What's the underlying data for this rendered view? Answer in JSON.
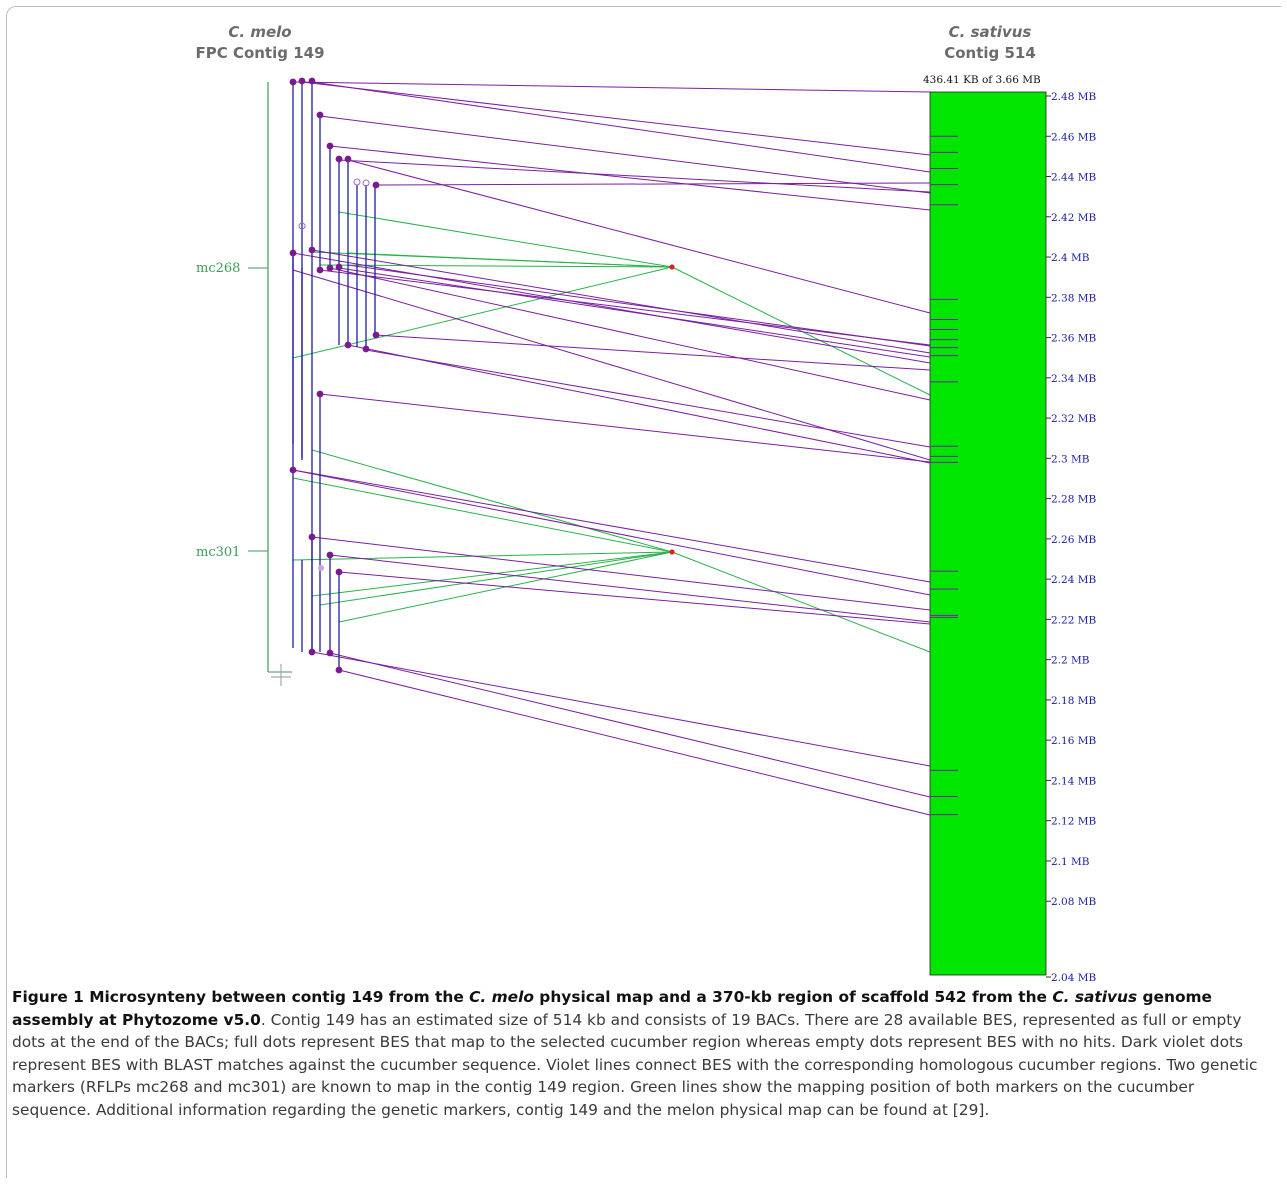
{
  "left_header": {
    "species": "C. melo",
    "contig": "FPC Contig 149"
  },
  "right_header": {
    "species": "C. sativus",
    "contig": "Contig 514"
  },
  "scale_note": "436.41 KB of 3.66 MB",
  "markers": [
    {
      "label": "mc268"
    },
    {
      "label": "mc301"
    }
  ],
  "colors": {
    "scaffold": "#00e600",
    "bac": "#1f1f9e",
    "bes_line": "#7a1fa0",
    "marker_line": "#29b24a",
    "marker_axis": "#3f9a5a",
    "marker_dot": "#e02020"
  },
  "chart_data": {
    "type": "diagram",
    "axis": {
      "unit": "MB",
      "range": [
        2.04,
        2.48
      ],
      "ticks": [
        "2.48 MB",
        "2.46 MB",
        "2.44 MB",
        "2.42 MB",
        "2.4 MB",
        "2.38 MB",
        "2.36 MB",
        "2.34 MB",
        "2.32 MB",
        "2.3 MB",
        "2.28 MB",
        "2.26 MB",
        "2.24 MB",
        "2.22 MB",
        "2.2 MB",
        "2.18 MB",
        "2.16 MB",
        "2.14 MB",
        "2.12 MB",
        "2.1 MB",
        "2.08 MB",
        "2.04 MB"
      ]
    },
    "tick_values": [
      2.48,
      2.46,
      2.44,
      2.42,
      2.4,
      2.38,
      2.36,
      2.34,
      2.32,
      2.3,
      2.28,
      2.26,
      2.24,
      2.22,
      2.2,
      2.18,
      2.16,
      2.14,
      2.12,
      2.1,
      2.08,
      2.04
    ],
    "bes_hit_positions_mb": [
      2.46,
      2.452,
      2.444,
      2.436,
      2.426,
      2.379,
      2.369,
      2.364,
      2.359,
      2.355,
      2.351,
      2.338,
      2.306,
      2.301,
      2.298,
      2.244,
      2.235,
      2.222,
      2.221,
      2.145,
      2.132,
      2.123
    ],
    "marker_hit_positions_mb": [
      2.342,
      2.201
    ]
  },
  "caption": {
    "label": "Figure 1",
    "title_parts": [
      " Microsynteny between contig 149 from the ",
      "C. melo",
      " physical map and a 370-kb region of scaffold 542 from the ",
      "C. sativus",
      " genome assembly at Phytozome v5.0"
    ],
    "body": ". Contig 149 has an estimated size of 514 kb and consists of 19 BACs. There are 28 available BES, represented as full or empty dots at the end of the BACs; full dots represent BES that map to the selected cucumber region whereas empty dots represent BES with no hits. Dark violet dots represent BES with BLAST matches against the cucumber sequence. Violet lines connect BES with the corresponding homologous cucumber regions. Two genetic markers (RFLPs mc268 and mc301) are known to map in the contig 149 region. Green lines show the mapping position of both markers on the cucumber sequence. Additional information regarding the genetic markers, contig 149 and the melon physical map can be found at [29]."
  }
}
